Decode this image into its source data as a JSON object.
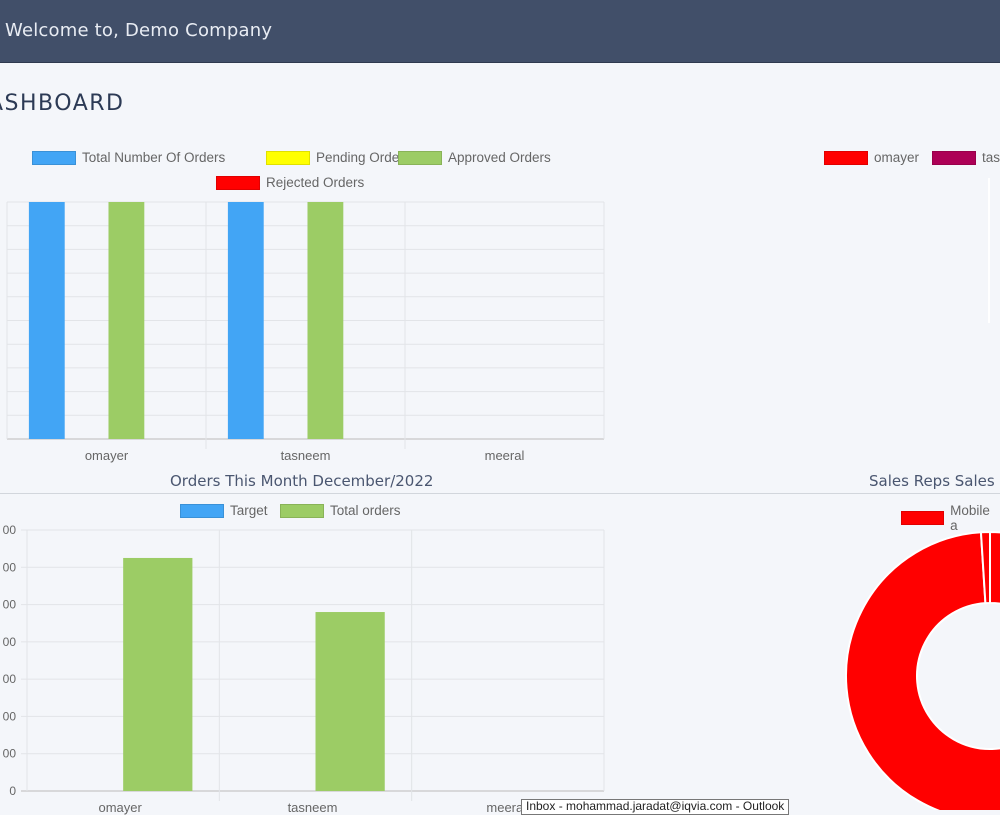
{
  "header": {
    "welcome_text": "Welcome to, Demo Company"
  },
  "page": {
    "title": "ASHBOARD"
  },
  "colors": {
    "header_bg": "#414f69",
    "blue": "#42a5f5",
    "yellow": "#ffff00",
    "green": "#9ccc65",
    "red": "#ff0000",
    "magenta": "#ad0056"
  },
  "tooltip": {
    "text": "Inbox - mohammad.jaradat@iqvia.com - Outlook"
  },
  "chart_data": [
    {
      "id": "orders-status-chart",
      "type": "bar",
      "title": "",
      "categories": [
        "omayer",
        "tasneem",
        "meeral"
      ],
      "series": [
        {
          "name": "Total Number Of Orders",
          "color": "#42a5f5",
          "values": [
            10,
            10,
            0
          ]
        },
        {
          "name": "Pending Orders",
          "color": "#ffff00",
          "values": [
            0,
            0,
            0
          ]
        },
        {
          "name": "Approved Orders",
          "color": "#9ccc65",
          "values": [
            10,
            10,
            0
          ]
        },
        {
          "name": "Rejected Orders",
          "color": "#ff0000",
          "values": [
            0,
            0,
            0
          ]
        }
      ],
      "ylim": [
        0,
        10
      ],
      "grid": true,
      "legend": "top"
    },
    {
      "id": "sales-reps-pie-top",
      "type": "pie",
      "legend_entries": [
        {
          "name": "omayer",
          "color": "#ff0000"
        },
        {
          "name": "tas",
          "color": "#ad0056"
        }
      ],
      "legend": "top"
    },
    {
      "id": "orders-this-month-chart",
      "type": "bar",
      "title": "Orders This Month December/2022",
      "categories": [
        "omayer",
        "tasneem",
        "meera"
      ],
      "series": [
        {
          "name": "Target",
          "color": "#42a5f5",
          "values": [
            0,
            0,
            0
          ]
        },
        {
          "name": "Total orders",
          "color": "#9ccc65",
          "values": [
            625,
            480,
            0
          ]
        }
      ],
      "yticks": [
        "0",
        "00",
        "00",
        "00",
        "00",
        "00",
        "00",
        "00"
      ],
      "ylim": [
        0,
        700
      ],
      "grid": true,
      "legend": "top"
    },
    {
      "id": "sales-reps-sales-donut",
      "type": "pie",
      "title": "Sales Reps Sales D",
      "legend_entries": [
        {
          "name": "Mobile a",
          "color": "#ff0000"
        }
      ],
      "values": [
        99,
        1
      ],
      "legend": "top"
    }
  ]
}
